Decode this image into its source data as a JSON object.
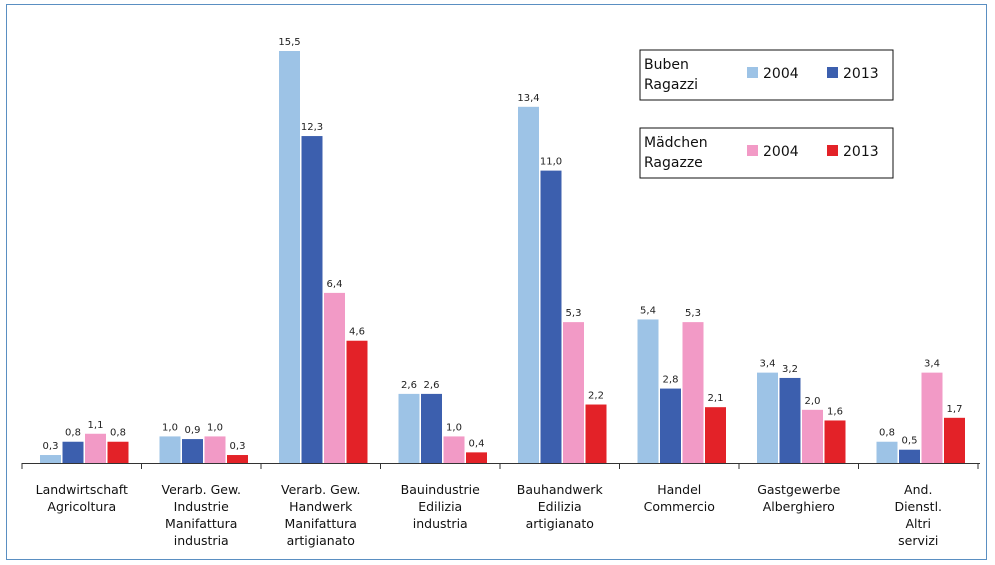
{
  "chart_data": {
    "type": "bar",
    "categories": [
      [
        "Landwirtschaft",
        "Agricoltura"
      ],
      [
        "Verarb. Gew.",
        "Industrie",
        "Manifattura",
        "industria"
      ],
      [
        "Verarb. Gew.",
        "Handwerk",
        "Manifattura",
        "artigianato"
      ],
      [
        "Bauindustrie",
        "Edilizia",
        "industria"
      ],
      [
        "Bauhandwerk",
        "Edilizia",
        "artigianato"
      ],
      [
        "Handel",
        "Commercio"
      ],
      [
        "Gastgewerbe",
        "Alberghiero"
      ],
      [
        "And.",
        "Dienstl.",
        "Altri",
        "servizi"
      ]
    ],
    "series": [
      {
        "group": "Buben",
        "name": "2004",
        "color": "#9dc3e6",
        "values": [
          0.3,
          1.0,
          15.5,
          2.6,
          13.4,
          5.4,
          3.4,
          0.8
        ],
        "labels": [
          "0,3",
          "1,0",
          "15,5",
          "2,6",
          "13,4",
          "5,4",
          "3,4",
          "0,8"
        ]
      },
      {
        "group": "Buben",
        "name": "2013",
        "color": "#3c5fae",
        "values": [
          0.8,
          0.9,
          12.3,
          2.6,
          11.0,
          2.8,
          3.2,
          0.5
        ],
        "labels": [
          "0,8",
          "0,9",
          "12,3",
          "2,6",
          "11,0",
          "2,8",
          "3,2",
          "0,5"
        ]
      },
      {
        "group": "Mädchen",
        "name": "2004",
        "color": "#f29ac6",
        "values": [
          1.1,
          1.0,
          6.4,
          1.0,
          5.3,
          5.3,
          2.0,
          3.4
        ],
        "labels": [
          "1,1",
          "1,0",
          "6,4",
          "1,0",
          "5,3",
          "5,3",
          "2,0",
          "3,4"
        ]
      },
      {
        "group": "Mädchen",
        "name": "2013",
        "color": "#e32228",
        "values": [
          0.8,
          0.3,
          4.6,
          0.4,
          2.2,
          2.1,
          1.6,
          1.7
        ],
        "labels": [
          "0,8",
          "0,3",
          "4,6",
          "0,4",
          "2,2",
          "2,1",
          "1,6",
          "1,7"
        ]
      }
    ],
    "ylim": [
      0,
      15.5
    ],
    "legend": [
      {
        "title_lines": [
          "Buben",
          "Ragazzi"
        ],
        "entries": [
          {
            "label": "2004",
            "color": "#9dc3e6"
          },
          {
            "label": "2013",
            "color": "#3c5fae"
          }
        ]
      },
      {
        "title_lines": [
          "Mädchen",
          "Ragazze"
        ],
        "entries": [
          {
            "label": "2004",
            "color": "#f29ac6"
          },
          {
            "label": "2013",
            "color": "#e32228"
          }
        ]
      }
    ],
    "legend_position": "top-right",
    "grid": false
  }
}
